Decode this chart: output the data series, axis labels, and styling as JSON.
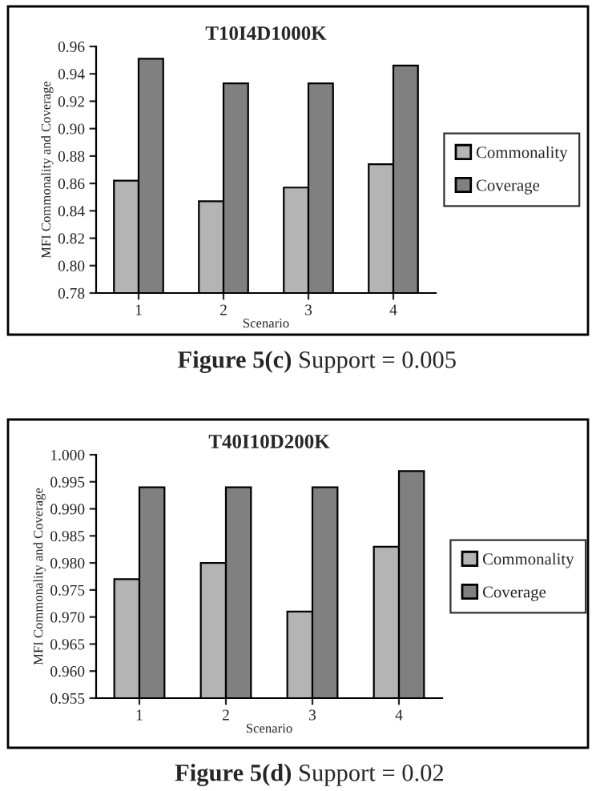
{
  "chart_data": [
    {
      "type": "bar",
      "title": "T10I4D1000K",
      "xlabel": "Scenario",
      "ylabel": "MFI Commonality and Coverage",
      "categories": [
        "1",
        "2",
        "3",
        "4"
      ],
      "series": [
        {
          "name": "Commonality",
          "color": "#b4b4b4",
          "values": [
            0.862,
            0.847,
            0.857,
            0.874
          ]
        },
        {
          "name": "Coverage",
          "color": "#808080",
          "values": [
            0.951,
            0.933,
            0.933,
            0.946
          ]
        }
      ],
      "ylim": [
        0.78,
        0.96
      ],
      "yticks": [
        {
          "value": 0.78,
          "label": "0.78"
        },
        {
          "value": 0.8,
          "label": "0.80"
        },
        {
          "value": 0.82,
          "label": "0.82"
        },
        {
          "value": 0.84,
          "label": "0.84"
        },
        {
          "value": 0.86,
          "label": "0.86"
        },
        {
          "value": 0.88,
          "label": "0.88"
        },
        {
          "value": 0.9,
          "label": "0.90"
        },
        {
          "value": 0.92,
          "label": "0.92"
        },
        {
          "value": 0.94,
          "label": "0.94"
        },
        {
          "value": 0.96,
          "label": "0.96"
        }
      ],
      "grid": false,
      "legend": "right",
      "annotations": [
        "Figure 5(c)",
        "Support = 0.005"
      ]
    },
    {
      "type": "bar",
      "title": "T40I10D200K",
      "xlabel": "Scenario",
      "ylabel": "MFI Commonality and Coverage",
      "categories": [
        "1",
        "2",
        "3",
        "4"
      ],
      "series": [
        {
          "name": "Commonality",
          "color": "#b4b4b4",
          "values": [
            0.977,
            0.98,
            0.971,
            0.983
          ]
        },
        {
          "name": "Coverage",
          "color": "#808080",
          "values": [
            0.994,
            0.994,
            0.994,
            0.997
          ]
        }
      ],
      "ylim": [
        0.955,
        1.0
      ],
      "yticks": [
        {
          "value": 0.955,
          "label": "0.955"
        },
        {
          "value": 0.96,
          "label": "0.960"
        },
        {
          "value": 0.965,
          "label": "0.965"
        },
        {
          "value": 0.97,
          "label": "0.970"
        },
        {
          "value": 0.975,
          "label": "0.975"
        },
        {
          "value": 0.98,
          "label": "0.980"
        },
        {
          "value": 0.985,
          "label": "0.985"
        },
        {
          "value": 0.99,
          "label": "0.990"
        },
        {
          "value": 0.995,
          "label": "0.995"
        },
        {
          "value": 1.0,
          "label": "1.000"
        }
      ],
      "grid": false,
      "legend": "right",
      "annotations": [
        "Figure 5(d)",
        "Support = 0.02"
      ]
    }
  ]
}
